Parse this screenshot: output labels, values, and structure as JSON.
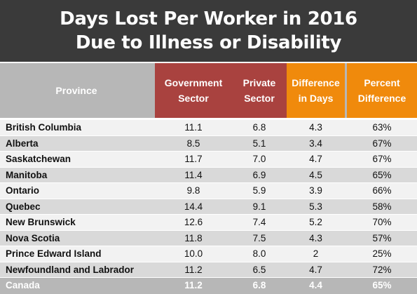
{
  "title": {
    "line1": "Days Lost Per Worker in 2016",
    "line2": "Due to Illness or Disability"
  },
  "colors": {
    "title_bg": "#3a3a3a",
    "header_gray": "#b7b7b7",
    "government_private_header": "#a9423f",
    "difference_header": "#f08a0c"
  },
  "chart_data": {
    "type": "table",
    "title": "Days Lost Per Worker in 2016 Due to Illness or Disability",
    "columns": [
      {
        "lines": [
          "Province"
        ]
      },
      {
        "lines": [
          "Government",
          "Sector"
        ]
      },
      {
        "lines": [
          "Private",
          "Sector"
        ]
      },
      {
        "lines": [
          "Difference",
          "in Days"
        ]
      },
      {
        "lines": [
          "Percent",
          "Difference"
        ]
      }
    ],
    "rows": [
      {
        "province": "British Columbia",
        "government": "11.1",
        "private": "6.8",
        "difference": "4.3",
        "percent": "63%"
      },
      {
        "province": "Alberta",
        "government": "8.5",
        "private": "5.1",
        "difference": "3.4",
        "percent": "67%"
      },
      {
        "province": "Saskatchewan",
        "government": "11.7",
        "private": "7.0",
        "difference": "4.7",
        "percent": "67%"
      },
      {
        "province": "Manitoba",
        "government": "11.4",
        "private": "6.9",
        "difference": "4.5",
        "percent": "65%"
      },
      {
        "province": "Ontario",
        "government": "9.8",
        "private": "5.9",
        "difference": "3.9",
        "percent": "66%"
      },
      {
        "province": "Quebec",
        "government": "14.4",
        "private": "9.1",
        "difference": "5.3",
        "percent": "58%"
      },
      {
        "province": "New Brunswick",
        "government": "12.6",
        "private": "7.4",
        "difference": "5.2",
        "percent": "70%"
      },
      {
        "province": "Nova Scotia",
        "government": "11.8",
        "private": "7.5",
        "difference": "4.3",
        "percent": "57%"
      },
      {
        "province": "Prince Edward Island",
        "government": "10.0",
        "private": "8.0",
        "difference": "2",
        "percent": "25%"
      },
      {
        "province": "Newfoundland and Labrador",
        "government": "11.2",
        "private": "6.5",
        "difference": "4.7",
        "percent": "72%"
      }
    ],
    "total": {
      "province": "Canada",
      "government": "11.2",
      "private": "6.8",
      "difference": "4.4",
      "percent": "65%"
    }
  }
}
